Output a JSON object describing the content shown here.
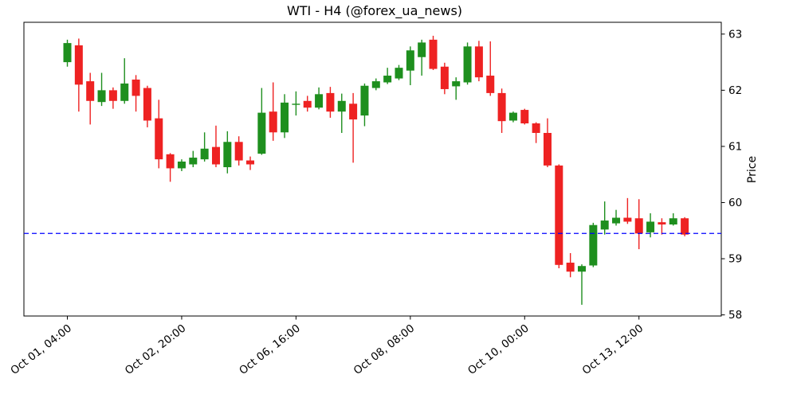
{
  "title": "WTI - H4 (@forex_ua_news)",
  "symbol": "WTI",
  "timeframe": "H4",
  "watermark": "@forex_ua_news",
  "chart_data": {
    "type": "candlestick",
    "title": "WTI - H4 (@forex_ua_news)",
    "xlabel": "",
    "ylabel": "Price",
    "ylim": [
      57.98,
      63.21
    ],
    "y_ticks": [
      58,
      59,
      60,
      61,
      62,
      63
    ],
    "grid": false,
    "x_ticks": [
      {
        "index": 0,
        "label": "Oct 01, 04:00"
      },
      {
        "index": 10,
        "label": "Oct 02, 20:00"
      },
      {
        "index": 20,
        "label": "Oct 06, 16:00"
      },
      {
        "index": 30,
        "label": "Oct 08, 08:00"
      },
      {
        "index": 40,
        "label": "Oct 10, 00:00"
      },
      {
        "index": 50,
        "label": "Oct 13, 12:00"
      }
    ],
    "support_line": {
      "price": 59.45,
      "color": "#0000ff",
      "style": "dashed"
    },
    "style": {
      "up_color": "#1e8f1e",
      "down_color": "#ee2222",
      "axis_color": "#000000",
      "background": "#ffffff"
    },
    "candles_format": [
      "open",
      "high",
      "low",
      "close"
    ],
    "candles": [
      [
        62.5,
        62.9,
        62.42,
        62.84
      ],
      [
        62.8,
        62.92,
        61.62,
        62.1
      ],
      [
        62.16,
        62.31,
        61.39,
        61.81
      ],
      [
        61.79,
        62.31,
        61.72,
        62.0
      ],
      [
        62.0,
        62.05,
        61.67,
        61.81
      ],
      [
        61.81,
        62.57,
        61.76,
        62.12
      ],
      [
        62.19,
        62.27,
        61.62,
        61.9
      ],
      [
        62.04,
        62.08,
        61.34,
        61.46
      ],
      [
        61.5,
        61.83,
        60.61,
        60.77
      ],
      [
        60.86,
        60.88,
        60.37,
        60.61
      ],
      [
        60.61,
        60.77,
        60.56,
        60.73
      ],
      [
        60.68,
        60.92,
        60.63,
        60.8
      ],
      [
        60.77,
        61.25,
        60.73,
        60.96
      ],
      [
        60.99,
        61.37,
        60.63,
        60.68
      ],
      [
        60.63,
        61.27,
        60.52,
        61.08
      ],
      [
        61.08,
        61.18,
        60.66,
        60.75
      ],
      [
        60.75,
        60.82,
        60.58,
        60.68
      ],
      [
        60.87,
        62.04,
        60.85,
        61.6
      ],
      [
        61.62,
        62.14,
        61.1,
        61.25
      ],
      [
        61.25,
        61.93,
        61.15,
        61.78
      ],
      [
        61.74,
        61.98,
        61.55,
        61.76
      ],
      [
        61.81,
        61.9,
        61.62,
        61.69
      ],
      [
        61.69,
        62.05,
        61.66,
        61.93
      ],
      [
        61.95,
        62.06,
        61.51,
        61.62
      ],
      [
        61.62,
        61.94,
        61.24,
        61.81
      ],
      [
        61.76,
        61.95,
        60.71,
        61.48
      ],
      [
        61.55,
        62.12,
        61.36,
        62.08
      ],
      [
        62.04,
        62.21,
        62.0,
        62.16
      ],
      [
        62.14,
        62.4,
        62.11,
        62.26
      ],
      [
        62.21,
        62.45,
        62.18,
        62.4
      ],
      [
        62.35,
        62.78,
        62.09,
        62.71
      ],
      [
        62.59,
        62.9,
        62.26,
        62.85
      ],
      [
        62.9,
        62.97,
        62.36,
        62.38
      ],
      [
        62.42,
        62.49,
        61.93,
        62.02
      ],
      [
        62.07,
        62.23,
        61.83,
        62.16
      ],
      [
        62.14,
        62.85,
        62.1,
        62.78
      ],
      [
        62.78,
        62.88,
        62.16,
        62.23
      ],
      [
        62.26,
        62.87,
        61.9,
        61.95
      ],
      [
        61.95,
        62.03,
        61.24,
        61.45
      ],
      [
        61.46,
        61.62,
        61.43,
        61.6
      ],
      [
        61.65,
        61.67,
        61.39,
        61.41
      ],
      [
        61.41,
        61.43,
        61.06,
        61.24
      ],
      [
        61.24,
        61.5,
        60.63,
        60.66
      ],
      [
        60.66,
        60.68,
        58.83,
        58.89
      ],
      [
        58.93,
        59.1,
        58.67,
        58.77
      ],
      [
        58.77,
        58.9,
        58.18,
        58.87
      ],
      [
        58.88,
        59.64,
        58.85,
        59.6
      ],
      [
        59.52,
        60.02,
        59.43,
        59.68
      ],
      [
        59.63,
        59.87,
        59.59,
        59.73
      ],
      [
        59.73,
        60.08,
        59.62,
        59.66
      ],
      [
        59.72,
        60.06,
        59.17,
        59.45
      ],
      [
        59.47,
        59.81,
        59.38,
        59.66
      ],
      [
        59.65,
        59.72,
        59.43,
        59.61
      ],
      [
        59.61,
        59.81,
        59.59,
        59.72
      ],
      [
        59.72,
        59.74,
        59.4,
        59.43
      ]
    ]
  }
}
